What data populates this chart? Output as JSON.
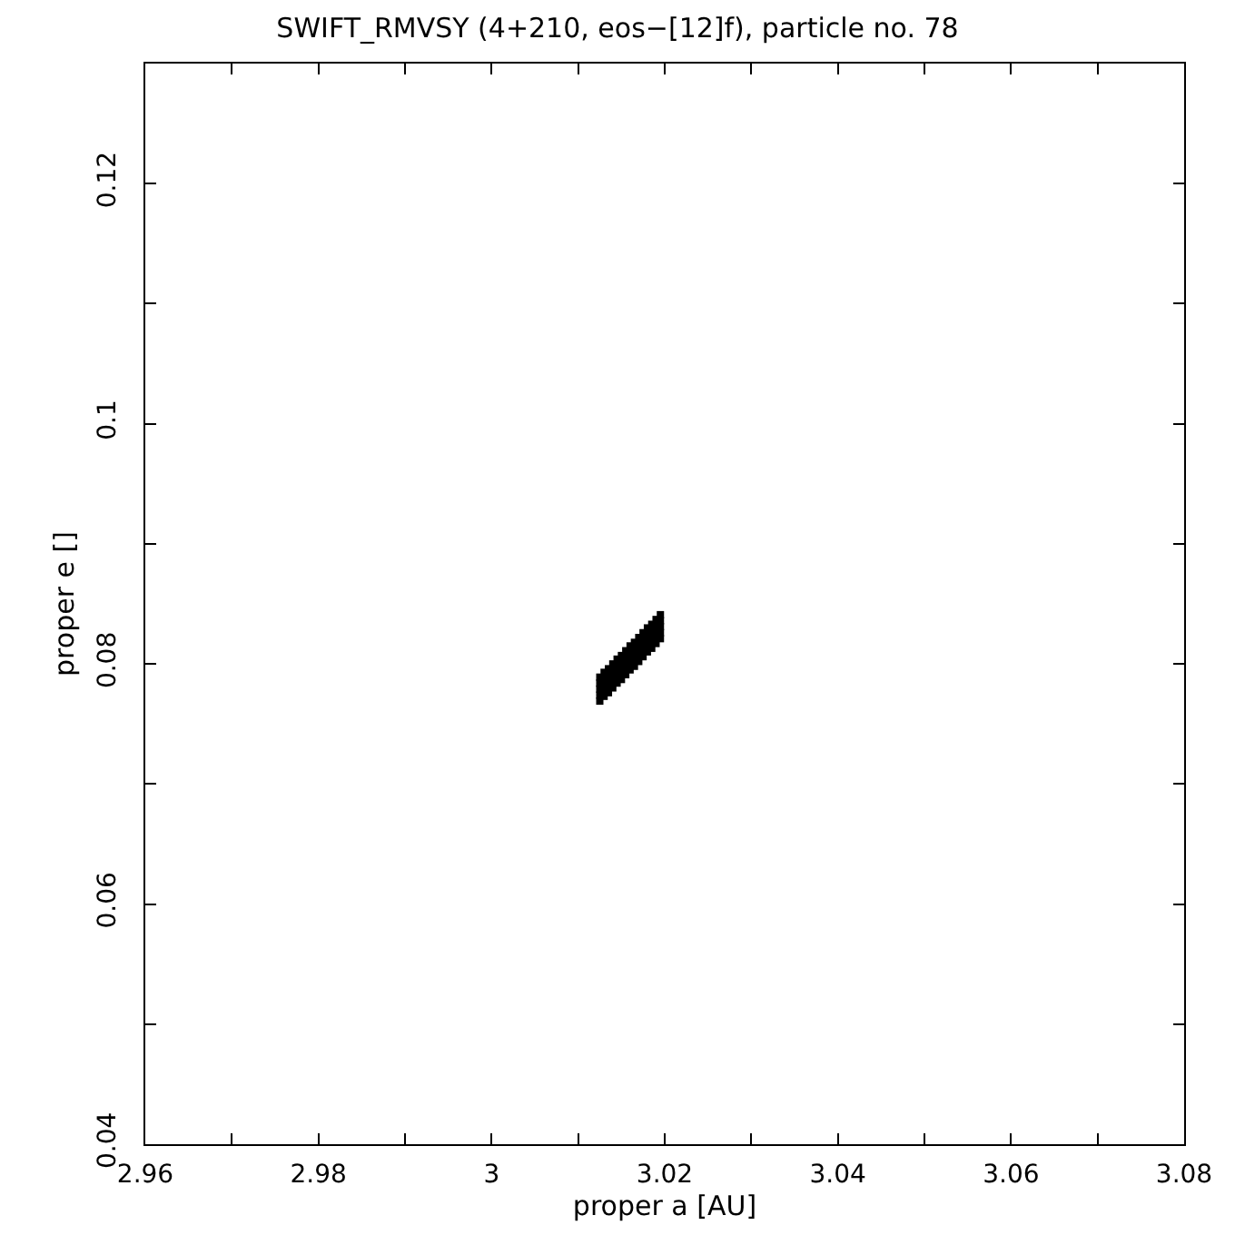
{
  "chart_data": {
    "type": "scatter",
    "title": "SWIFT_RMVSY (4+210, eos−[12]f), particle no. 78",
    "xlabel": "proper a [AU]",
    "ylabel": "proper e []",
    "xlim": [
      2.96,
      3.08
    ],
    "ylim": [
      0.04,
      0.13
    ],
    "xticks": [
      2.96,
      {
        "value": 2.97,
        "label": null
      },
      2.98,
      {
        "value": 2.99,
        "label": null
      },
      3,
      {
        "value": 3.01,
        "label": null
      },
      3.02,
      {
        "value": 3.03,
        "label": null
      },
      3.04,
      {
        "value": 3.05,
        "label": null
      },
      3.06,
      {
        "value": 3.07,
        "label": null
      },
      3.08
    ],
    "yticks": [
      0.04,
      {
        "value": 0.05,
        "label": null
      },
      0.06,
      {
        "value": 0.07,
        "label": null
      },
      0.08,
      {
        "value": 0.09,
        "label": null
      },
      0.1,
      {
        "value": 0.11,
        "label": null
      },
      0.12
    ],
    "marker": "square",
    "series": [
      {
        "color": "#000000",
        "x": [
          3.0125,
          3.013,
          3.0135,
          3.014,
          3.0145,
          3.015,
          3.0155,
          3.016,
          3.0165,
          3.017,
          3.0175,
          3.018,
          3.0185,
          3.019,
          3.0195,
          3.0125,
          3.013,
          3.0135,
          3.014,
          3.0145,
          3.015,
          3.0155,
          3.016,
          3.0165,
          3.017,
          3.0175,
          3.018,
          3.0185,
          3.019,
          3.0195,
          3.0125,
          3.013,
          3.0135,
          3.014,
          3.0145,
          3.015,
          3.0155,
          3.016,
          3.0165,
          3.017,
          3.0175,
          3.018,
          3.0185,
          3.019,
          3.0195,
          3.0125,
          3.013,
          3.0135,
          3.014,
          3.0145,
          3.015,
          3.0155,
          3.016,
          3.0165,
          3.017,
          3.0175,
          3.018,
          3.0185,
          3.019,
          3.0195,
          3.0125,
          3.013,
          3.0135,
          3.014,
          3.0145,
          3.015,
          3.0155,
          3.016,
          3.0165,
          3.017,
          3.0175,
          3.018,
          3.0185,
          3.019,
          3.0195
        ],
        "values": [
          0.0769,
          0.0773,
          0.0776,
          0.078,
          0.0784,
          0.0787,
          0.0791,
          0.0795,
          0.0798,
          0.0802,
          0.0806,
          0.081,
          0.0813,
          0.0817,
          0.0821,
          0.0774,
          0.0778,
          0.0781,
          0.0785,
          0.0789,
          0.0792,
          0.0796,
          0.08,
          0.0803,
          0.0807,
          0.0811,
          0.0815,
          0.0818,
          0.0822,
          0.0826,
          0.0779,
          0.0783,
          0.0786,
          0.079,
          0.0794,
          0.0797,
          0.0801,
          0.0805,
          0.0808,
          0.0812,
          0.0816,
          0.082,
          0.0823,
          0.0827,
          0.0831,
          0.0784,
          0.0788,
          0.0791,
          0.0795,
          0.0799,
          0.0802,
          0.0806,
          0.081,
          0.0813,
          0.0817,
          0.0821,
          0.0825,
          0.0828,
          0.0832,
          0.0836,
          0.0789,
          0.0793,
          0.0796,
          0.08,
          0.0804,
          0.0807,
          0.0811,
          0.0815,
          0.0818,
          0.0822,
          0.0826,
          0.083,
          0.0833,
          0.0837,
          0.0841
        ]
      }
    ]
  }
}
